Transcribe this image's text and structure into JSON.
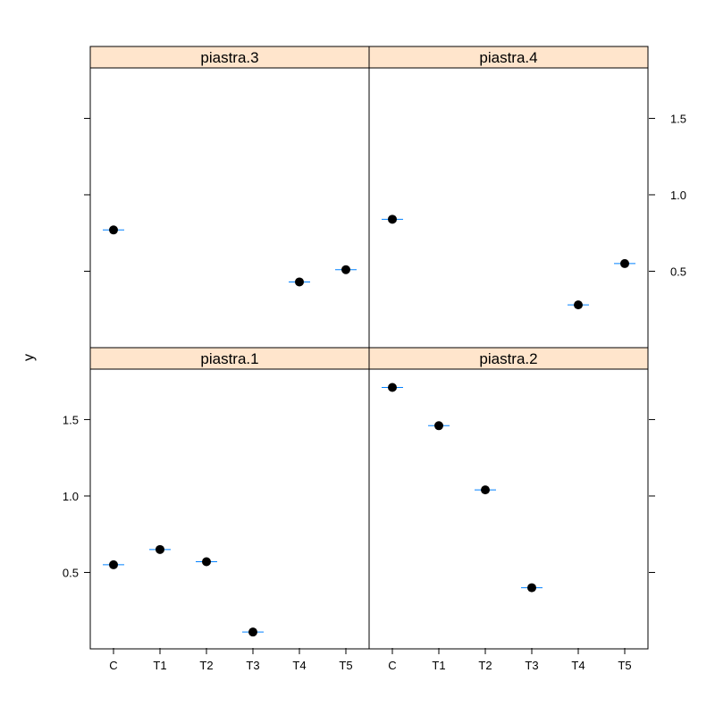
{
  "chart_data": {
    "type": "scatter",
    "ylabel": "y",
    "categories": [
      "C",
      "T1",
      "T2",
      "T3",
      "T4",
      "T5"
    ],
    "y_ticks": [
      "0.5",
      "1.0",
      "1.5"
    ],
    "ylim": [
      0.0,
      1.83
    ],
    "grid": false,
    "colors": {
      "point": "#000000",
      "error_bar": "#0080ff",
      "strip": "#ffe5cc"
    },
    "panels": [
      {
        "name": "piastra.3",
        "points": [
          {
            "x": "C",
            "y": 0.77
          },
          {
            "x": "T4",
            "y": 0.43
          },
          {
            "x": "T5",
            "y": 0.51
          }
        ]
      },
      {
        "name": "piastra.4",
        "points": [
          {
            "x": "C",
            "y": 0.84
          },
          {
            "x": "T4",
            "y": 0.28
          },
          {
            "x": "T5",
            "y": 0.55
          }
        ]
      },
      {
        "name": "piastra.1",
        "points": [
          {
            "x": "C",
            "y": 0.55
          },
          {
            "x": "T1",
            "y": 0.65
          },
          {
            "x": "T2",
            "y": 0.57
          },
          {
            "x": "T3",
            "y": 0.11
          }
        ]
      },
      {
        "name": "piastra.2",
        "points": [
          {
            "x": "C",
            "y": 1.71
          },
          {
            "x": "T1",
            "y": 1.46
          },
          {
            "x": "T2",
            "y": 1.04
          },
          {
            "x": "T3",
            "y": 0.4
          }
        ]
      }
    ]
  }
}
